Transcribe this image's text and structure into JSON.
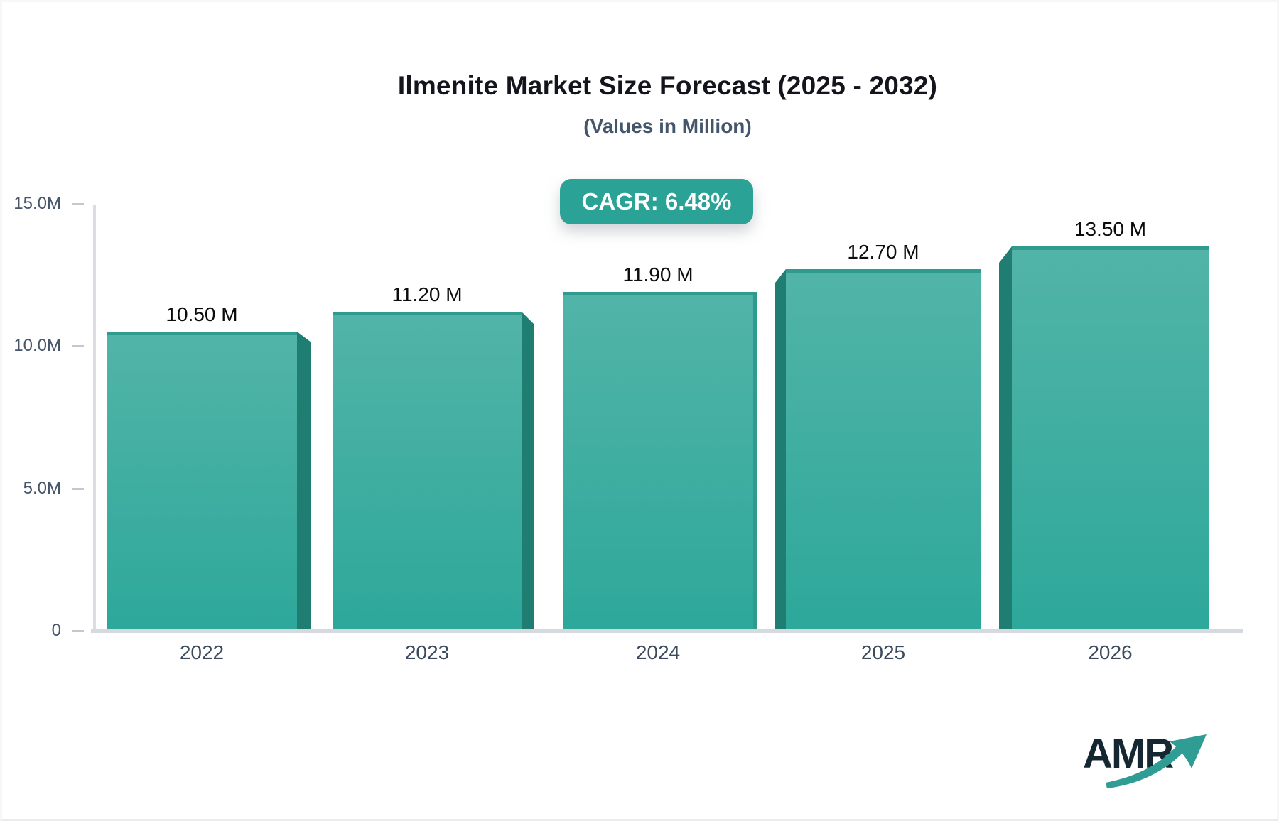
{
  "header": {
    "title": "Ilmenite Market Size Forecast (2025 - 2032)",
    "subtitle": "(Values in Million)"
  },
  "badge": {
    "label": "CAGR: 6.48%",
    "background_color": "#2aa296",
    "text_color": "#ffffff"
  },
  "logo": {
    "text": "AMR",
    "arrow_color": "#2f9d93"
  },
  "chart_data": {
    "type": "bar",
    "title": "Ilmenite Market Size Forecast (2025 - 2032)",
    "subtitle": "(Values in Million)",
    "unit": "Million",
    "cagr": "6.48%",
    "categories": [
      "2022",
      "2023",
      "2024",
      "2025",
      "2026"
    ],
    "values": [
      10.5,
      11.2,
      11.9,
      12.7,
      13.5
    ],
    "value_labels": [
      "10.50 M",
      "11.20 M",
      "11.90 M",
      "12.70 M",
      "13.50 M"
    ],
    "xlabel": "",
    "ylabel": "",
    "ylim": [
      0,
      15
    ],
    "yticks": [
      {
        "value": 15,
        "label": "15.0M"
      },
      {
        "value": 10,
        "label": "10.0M"
      },
      {
        "value": 5,
        "label": "5.0M"
      },
      {
        "value": 0,
        "label": "0"
      }
    ],
    "grid": false,
    "legend": "none",
    "bar_color_top": "#52b4a8",
    "bar_color_bottom": "#2da89a",
    "bar_top_edge_color": "#2f9a8e",
    "bar_side_color": "#1f7d72"
  }
}
